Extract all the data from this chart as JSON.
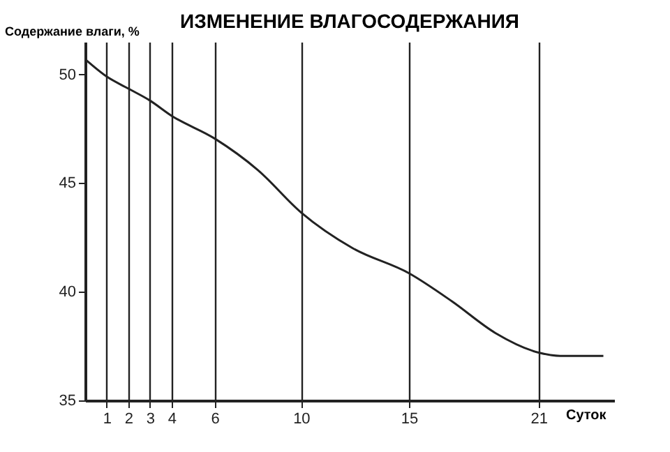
{
  "chart_data": {
    "type": "line",
    "title": "ИЗМЕНЕНИЕ ВЛАГОСОДЕРЖАНИЯ",
    "ylabel": "Содержание влаги, %",
    "xlabel": "Суток",
    "x": [
      0,
      1,
      2,
      3,
      4,
      6,
      8,
      10,
      12.4,
      15,
      17,
      19,
      21,
      22,
      24
    ],
    "series": [
      {
        "color": "#222222",
        "values": [
          50.7,
          49.9,
          49.35,
          48.8,
          48.1,
          47.05,
          45.6,
          43.65,
          42.0,
          40.85,
          39.55,
          38.1,
          37.2,
          37.05,
          37.05
        ]
      }
    ],
    "xlim": [
      0,
      24.5
    ],
    "ylim": [
      35,
      51.5
    ],
    "xticks": [
      1,
      2,
      3,
      4,
      6,
      10,
      15,
      21
    ],
    "yticks": [
      35,
      40,
      45,
      50
    ],
    "grid": "x",
    "marker": "none",
    "line_style": "solid"
  }
}
